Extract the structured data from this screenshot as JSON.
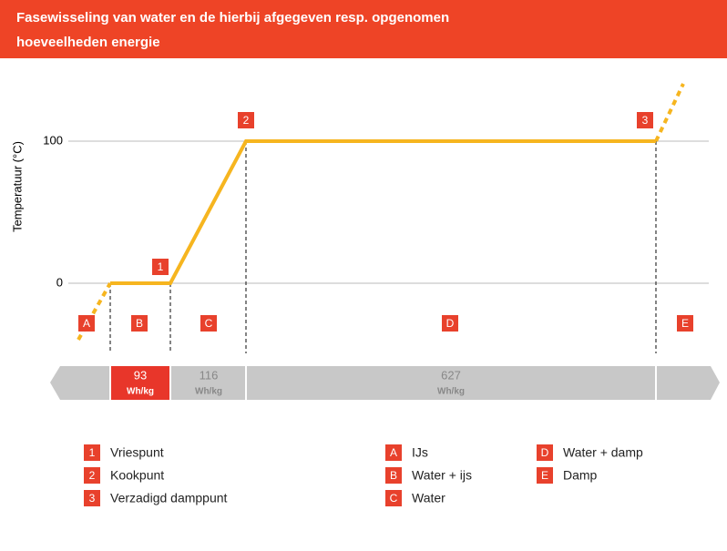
{
  "header": {
    "title": "Fasewisseling van water en de hierbij afgegeven resp. opgenomen hoeveelheden energie"
  },
  "axis": {
    "label": "Temperatuur (°C)",
    "ticks": [
      100,
      0
    ]
  },
  "points": [
    "1",
    "2",
    "3"
  ],
  "phases": [
    "A",
    "B",
    "C",
    "D",
    "E"
  ],
  "energy": [
    {
      "value": "93",
      "unit": "Wh/kg"
    },
    {
      "value": "116",
      "unit": "Wh/kg"
    },
    {
      "value": "627",
      "unit": "Wh/kg"
    }
  ],
  "legend": {
    "points": [
      {
        "key": "1",
        "label": "Vriespunt"
      },
      {
        "key": "2",
        "label": "Kookpunt"
      },
      {
        "key": "3",
        "label": "Verzadigd damppunt"
      }
    ],
    "phases": [
      {
        "key": "A",
        "label": "IJs"
      },
      {
        "key": "B",
        "label": "Water + ijs"
      },
      {
        "key": "C",
        "label": "Water"
      },
      {
        "key": "D",
        "label": "Water + damp"
      },
      {
        "key": "E",
        "label": "Damp"
      }
    ]
  }
}
